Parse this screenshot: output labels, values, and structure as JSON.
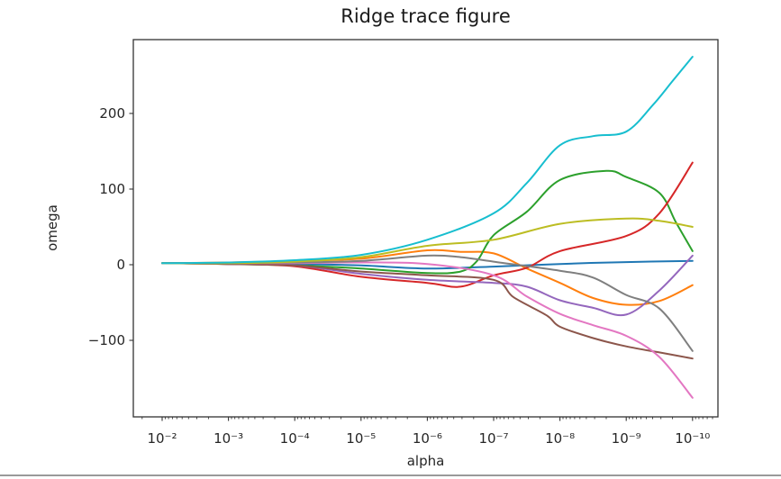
{
  "figure": {
    "title": "Ridge trace figure",
    "xlabel": "alpha",
    "ylabel": "omega"
  },
  "chart_data": {
    "type": "line",
    "title": "Ridge trace figure",
    "xlabel": "alpha",
    "ylabel": "omega",
    "x_scale": "log",
    "x_inverted": true,
    "xlim": [
      "1e-2 (with margin to 10^-1.6)",
      "1e-10 (with margin to 10^-10.4)"
    ],
    "ylim": [
      -201,
      298
    ],
    "grid": false,
    "legend": "none",
    "x_tick_log10": [
      -2,
      -3,
      -4,
      -5,
      -6,
      -7,
      -8,
      -9,
      -10
    ],
    "x_tick_labels": [
      "10⁻²",
      "10⁻³",
      "10⁻⁴",
      "10⁻⁵",
      "10⁻⁶",
      "10⁻⁷",
      "10⁻⁸",
      "10⁻⁹",
      "10⁻¹⁰"
    ],
    "y_ticks": [
      -100,
      0,
      100,
      200
    ],
    "series": [
      {
        "name": "blue",
        "color": "#1f77b4",
        "points": [
          [
            -2,
            2
          ],
          [
            -3,
            2
          ],
          [
            -4,
            1
          ],
          [
            -5,
            -1
          ],
          [
            -6,
            -5
          ],
          [
            -7,
            -2.5
          ],
          [
            -8,
            1
          ],
          [
            -9,
            3.5
          ],
          [
            -10,
            5
          ]
        ]
      },
      {
        "name": "orange",
        "color": "#ff7f0e",
        "points": [
          [
            -2,
            2
          ],
          [
            -3,
            3
          ],
          [
            -4,
            5
          ],
          [
            -5,
            8
          ],
          [
            -6,
            19
          ],
          [
            -6.5,
            17
          ],
          [
            -7,
            15
          ],
          [
            -7.5,
            -5
          ],
          [
            -8,
            -24
          ],
          [
            -8.5,
            -44
          ],
          [
            -9,
            -53
          ],
          [
            -9.5,
            -48
          ],
          [
            -10,
            -27
          ]
        ]
      },
      {
        "name": "green",
        "color": "#2ca02c",
        "points": [
          [
            -2,
            2
          ],
          [
            -3,
            1
          ],
          [
            -4,
            -1
          ],
          [
            -5,
            -5
          ],
          [
            -6,
            -11
          ],
          [
            -6.5,
            -9
          ],
          [
            -6.75,
            5
          ],
          [
            -7,
            39
          ],
          [
            -7.5,
            70
          ],
          [
            -8,
            112
          ],
          [
            -8.7,
            124
          ],
          [
            -9,
            116
          ],
          [
            -9.5,
            95
          ],
          [
            -9.75,
            56
          ],
          [
            -10,
            18
          ]
        ]
      },
      {
        "name": "red",
        "color": "#d62728",
        "points": [
          [
            -2,
            2
          ],
          [
            -3,
            1
          ],
          [
            -4,
            -2
          ],
          [
            -5,
            -16
          ],
          [
            -6,
            -24
          ],
          [
            -6.5,
            -29
          ],
          [
            -7,
            -14
          ],
          [
            -7.5,
            -4
          ],
          [
            -8,
            18
          ],
          [
            -9,
            38
          ],
          [
            -9.5,
            68
          ],
          [
            -10,
            135
          ]
        ]
      },
      {
        "name": "purple",
        "color": "#9467bd",
        "points": [
          [
            -2,
            2
          ],
          [
            -3,
            1
          ],
          [
            -4,
            -1
          ],
          [
            -5,
            -12
          ],
          [
            -6,
            -20
          ],
          [
            -7,
            -24
          ],
          [
            -7.5,
            -29
          ],
          [
            -8,
            -47
          ],
          [
            -8.5,
            -57
          ],
          [
            -9,
            -66
          ],
          [
            -9.5,
            -34
          ],
          [
            -10,
            12
          ]
        ]
      },
      {
        "name": "brown",
        "color": "#8c564b",
        "points": [
          [
            -2,
            2
          ],
          [
            -3,
            1
          ],
          [
            -4,
            -1
          ],
          [
            -5,
            -9
          ],
          [
            -6,
            -14
          ],
          [
            -7,
            -20
          ],
          [
            -7.3,
            -43
          ],
          [
            -7.8,
            -67
          ],
          [
            -8,
            -82
          ],
          [
            -8.5,
            -97
          ],
          [
            -9,
            -108
          ],
          [
            -9.5,
            -116
          ],
          [
            -10,
            -124
          ]
        ]
      },
      {
        "name": "pink",
        "color": "#e377c2",
        "points": [
          [
            -2,
            2
          ],
          [
            -3,
            2
          ],
          [
            -4,
            2
          ],
          [
            -5,
            3
          ],
          [
            -6,
            1
          ],
          [
            -7,
            -14
          ],
          [
            -7.5,
            -42
          ],
          [
            -8,
            -65
          ],
          [
            -8.5,
            -80
          ],
          [
            -9,
            -94
          ],
          [
            -9.5,
            -122
          ],
          [
            -10,
            -176
          ]
        ]
      },
      {
        "name": "gray",
        "color": "#7f7f7f",
        "points": [
          [
            -2,
            2
          ],
          [
            -3,
            2
          ],
          [
            -4,
            3
          ],
          [
            -5,
            5
          ],
          [
            -6,
            12
          ],
          [
            -6.5,
            10
          ],
          [
            -7,
            4
          ],
          [
            -8,
            -8
          ],
          [
            -8.5,
            -17
          ],
          [
            -9,
            -40
          ],
          [
            -9.5,
            -58
          ],
          [
            -10,
            -114
          ]
        ]
      },
      {
        "name": "olive",
        "color": "#bcbd22",
        "points": [
          [
            -2,
            2
          ],
          [
            -3,
            2
          ],
          [
            -4,
            4
          ],
          [
            -5,
            10
          ],
          [
            -6,
            25
          ],
          [
            -7,
            33
          ],
          [
            -8,
            54
          ],
          [
            -9,
            61
          ],
          [
            -9.5,
            58
          ],
          [
            -10,
            50
          ]
        ]
      },
      {
        "name": "cyan",
        "color": "#17becf",
        "points": [
          [
            -2,
            2
          ],
          [
            -3,
            3
          ],
          [
            -4,
            6
          ],
          [
            -5,
            13
          ],
          [
            -6,
            33
          ],
          [
            -7,
            68
          ],
          [
            -7.5,
            108
          ],
          [
            -8,
            158
          ],
          [
            -8.5,
            170
          ],
          [
            -9,
            176
          ],
          [
            -9.4,
            211
          ],
          [
            -9.7,
            243
          ],
          [
            -10,
            275
          ]
        ]
      }
    ]
  }
}
